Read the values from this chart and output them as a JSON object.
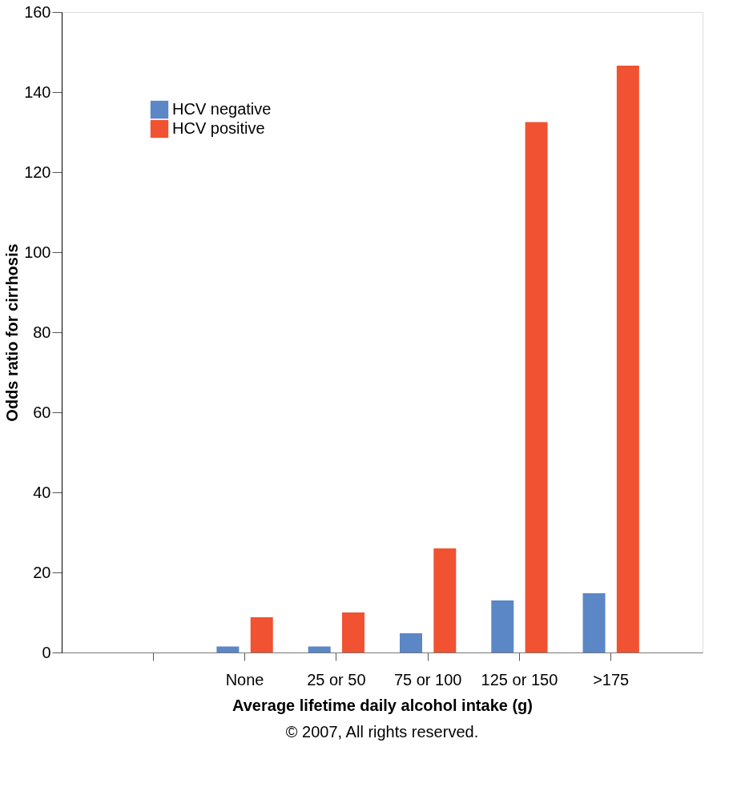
{
  "chart_data": {
    "type": "bar",
    "categories": [
      null,
      "None",
      "25 or 50",
      "75 or 100",
      "125 or 150",
      ">175"
    ],
    "xlabel": "Average lifetime daily alcohol intake (g)",
    "ylabel": "Odds ratio for cirrhosis",
    "series": [
      {
        "name": "HCV negative",
        "color": "#5b87c6",
        "values": [
          null,
          1.5,
          1.5,
          4.8,
          13,
          14.8
        ]
      },
      {
        "name": "HCV positive",
        "color": "#f05232",
        "values": [
          null,
          8.8,
          10,
          26,
          132.5,
          146.6
        ]
      }
    ],
    "ylim": [
      0,
      160
    ],
    "yticks": [
      0,
      20,
      40,
      60,
      80,
      100,
      120,
      140,
      160
    ],
    "grid": false,
    "legend": "top left",
    "annotations": [
      "© 2007, All rights reserved."
    ]
  }
}
